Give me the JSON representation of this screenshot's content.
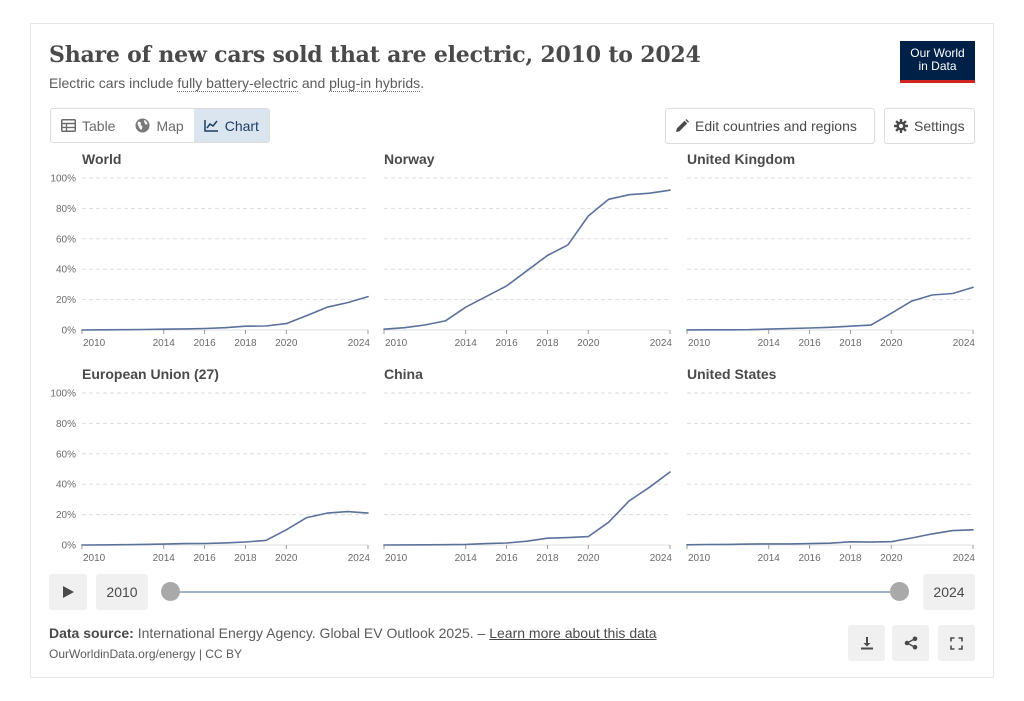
{
  "title": "Share of new cars sold that are electric, 2010 to 2024",
  "subtitle": {
    "prefix": "Electric cars include ",
    "link1": "fully battery-electric",
    "middle": " and ",
    "link2": "plug-in hybrids",
    "suffix": "."
  },
  "logo": {
    "line1": "Our World",
    "line2": "in Data"
  },
  "tabs": {
    "table": "Table",
    "map": "Map",
    "chart": "Chart"
  },
  "controls": {
    "edit": "Edit countries and regions",
    "settings": "Settings"
  },
  "timeline": {
    "start": "2010",
    "end": "2024",
    "start_fraction": 0,
    "end_fraction": 1
  },
  "footer": {
    "source_label": "Data source:",
    "source_text": " International Energy Agency. Global EV Outlook 2025. – ",
    "source_link": "Learn more about this data",
    "license": "OurWorldinData.org/energy | CC BY"
  },
  "colors": {
    "line": "#5b719b",
    "grid": "#dddddd",
    "axis": "#9a9a9a"
  },
  "chart_data": {
    "type": "line",
    "title": "Share of new cars sold that are electric, 2010 to 2024",
    "ylim": [
      0,
      100
    ],
    "y_ticks": [
      "0%",
      "20%",
      "40%",
      "60%",
      "80%",
      "100%"
    ],
    "x_ticks": [
      "2010",
      "2014",
      "2016",
      "2018",
      "2020",
      "2024"
    ],
    "x_tick_values": [
      2010,
      2014,
      2016,
      2018,
      2020,
      2024
    ],
    "x": [
      2010,
      2011,
      2012,
      2013,
      2014,
      2015,
      2016,
      2017,
      2018,
      2019,
      2020,
      2021,
      2022,
      2023,
      2024
    ],
    "panels": [
      {
        "name": "World",
        "values": [
          0.01,
          0.1,
          0.2,
          0.3,
          0.5,
          0.7,
          1.0,
          1.5,
          2.5,
          2.6,
          4.2,
          9.5,
          15,
          18,
          22
        ]
      },
      {
        "name": "Norway",
        "values": [
          0.5,
          1.5,
          3.3,
          6,
          15,
          22,
          29,
          39,
          49,
          56,
          75,
          86,
          89,
          90,
          92
        ]
      },
      {
        "name": "United Kingdom",
        "values": [
          0.05,
          0.1,
          0.1,
          0.2,
          0.6,
          1.0,
          1.3,
          1.8,
          2.5,
          3.2,
          11,
          19,
          23,
          24,
          28
        ]
      },
      {
        "name": "European Union (27)",
        "values": [
          0.01,
          0.05,
          0.2,
          0.4,
          0.6,
          0.9,
          1.0,
          1.4,
          2.0,
          3.0,
          10,
          18,
          21,
          22,
          21
        ]
      },
      {
        "name": "China",
        "values": [
          0.01,
          0.05,
          0.1,
          0.2,
          0.4,
          0.9,
          1.3,
          2.5,
          4.5,
          4.9,
          5.5,
          15,
          29,
          38,
          48
        ]
      },
      {
        "name": "United States",
        "values": [
          0.1,
          0.3,
          0.4,
          0.6,
          0.7,
          0.7,
          0.9,
          1.2,
          2.1,
          1.9,
          2.2,
          4.6,
          7.3,
          9.5,
          10
        ]
      }
    ]
  }
}
